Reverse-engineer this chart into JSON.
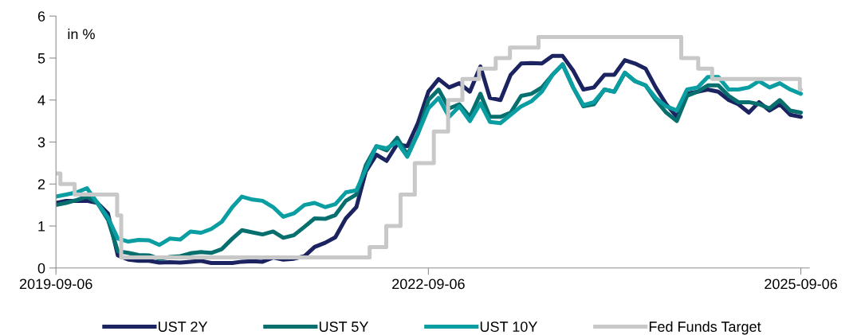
{
  "chart_data": {
    "type": "line",
    "x": [
      "2019-09-06",
      "2019-10-06",
      "2019-11-06",
      "2019-12-06",
      "2020-01-06",
      "2020-02-06",
      "2020-03-06",
      "2020-04-06",
      "2020-05-06",
      "2020-06-06",
      "2020-07-06",
      "2020-08-06",
      "2020-09-06",
      "2020-10-06",
      "2020-11-06",
      "2020-12-06",
      "2021-01-06",
      "2021-02-06",
      "2021-03-06",
      "2021-04-06",
      "2021-05-06",
      "2021-06-06",
      "2021-07-06",
      "2021-08-06",
      "2021-09-06",
      "2021-10-06",
      "2021-11-06",
      "2021-12-06",
      "2022-01-06",
      "2022-02-06",
      "2022-03-06",
      "2022-04-06",
      "2022-05-06",
      "2022-06-06",
      "2022-07-06",
      "2022-08-06",
      "2022-09-06",
      "2022-10-06",
      "2022-11-06",
      "2022-12-06",
      "2023-01-06",
      "2023-02-06",
      "2023-03-06",
      "2023-04-06",
      "2023-05-06",
      "2023-06-06",
      "2023-07-06",
      "2023-08-06",
      "2023-09-06",
      "2023-10-06",
      "2023-11-06",
      "2023-12-06",
      "2024-01-06",
      "2024-02-06",
      "2024-03-06",
      "2024-04-06",
      "2024-05-06",
      "2024-06-06",
      "2024-07-06",
      "2024-08-06",
      "2024-09-06",
      "2024-10-06",
      "2024-11-06",
      "2024-12-06",
      "2025-01-06",
      "2025-02-06",
      "2025-03-06",
      "2025-04-06",
      "2025-05-06",
      "2025-06-06",
      "2025-07-06",
      "2025-08-06",
      "2025-09-06"
    ],
    "series": [
      {
        "name": "UST 2Y",
        "color": "#1b2360",
        "values": [
          1.55,
          1.6,
          1.6,
          1.6,
          1.55,
          1.3,
          0.3,
          0.2,
          0.17,
          0.17,
          0.13,
          0.14,
          0.13,
          0.15,
          0.17,
          0.12,
          0.12,
          0.12,
          0.15,
          0.16,
          0.15,
          0.25,
          0.2,
          0.22,
          0.28,
          0.5,
          0.6,
          0.73,
          1.18,
          1.45,
          2.3,
          2.7,
          2.55,
          2.95,
          2.9,
          3.45,
          4.2,
          4.5,
          4.3,
          4.4,
          4.2,
          4.8,
          4.05,
          4.0,
          4.6,
          4.87,
          4.88,
          4.87,
          5.05,
          5.05,
          4.7,
          4.25,
          4.3,
          4.6,
          4.6,
          4.95,
          4.87,
          4.75,
          4.3,
          3.9,
          3.6,
          4.15,
          4.2,
          4.25,
          4.2,
          4.0,
          3.9,
          3.7,
          3.95,
          3.75,
          3.9,
          3.65,
          3.6
        ]
      },
      {
        "name": "UST 5Y",
        "color": "#07706f",
        "values": [
          1.5,
          1.55,
          1.62,
          1.7,
          1.55,
          1.15,
          0.4,
          0.36,
          0.31,
          0.3,
          0.22,
          0.26,
          0.28,
          0.35,
          0.38,
          0.36,
          0.45,
          0.7,
          0.9,
          0.85,
          0.8,
          0.87,
          0.72,
          0.78,
          0.98,
          1.18,
          1.17,
          1.26,
          1.6,
          1.75,
          2.45,
          2.9,
          2.8,
          3.1,
          2.7,
          3.2,
          4.0,
          4.25,
          3.8,
          3.9,
          3.6,
          4.15,
          3.6,
          3.6,
          3.7,
          4.1,
          4.15,
          4.3,
          4.6,
          4.85,
          4.3,
          3.85,
          3.9,
          4.25,
          4.2,
          4.65,
          4.45,
          4.35,
          4.0,
          3.7,
          3.5,
          4.1,
          4.2,
          4.35,
          4.35,
          4.1,
          3.95,
          3.95,
          3.9,
          3.8,
          4.0,
          3.75,
          3.7
        ]
      },
      {
        "name": "UST 10Y",
        "color": "#0a9ea2",
        "values": [
          1.7,
          1.75,
          1.8,
          1.9,
          1.55,
          1.2,
          0.7,
          0.63,
          0.67,
          0.66,
          0.55,
          0.7,
          0.68,
          0.87,
          0.84,
          0.93,
          1.1,
          1.45,
          1.7,
          1.63,
          1.6,
          1.45,
          1.22,
          1.3,
          1.5,
          1.55,
          1.45,
          1.52,
          1.8,
          1.85,
          2.35,
          2.9,
          2.85,
          3.0,
          2.65,
          3.2,
          3.8,
          4.05,
          3.6,
          3.85,
          3.5,
          3.92,
          3.48,
          3.45,
          3.65,
          3.85,
          3.97,
          4.2,
          4.6,
          4.85,
          4.3,
          3.88,
          3.95,
          4.25,
          4.2,
          4.65,
          4.45,
          4.35,
          4.05,
          3.85,
          3.75,
          4.25,
          4.3,
          4.55,
          4.55,
          4.25,
          4.25,
          4.3,
          4.45,
          4.3,
          4.4,
          4.25,
          4.15
        ]
      },
      {
        "name": "Fed Funds Target",
        "color": "#c8c8c8",
        "type": "step",
        "x": [
          "2019-09-06",
          "2019-09-19",
          "2019-10-31",
          "2020-03-04",
          "2020-03-16",
          "2022-03-17",
          "2022-05-05",
          "2022-06-16",
          "2022-07-28",
          "2022-09-22",
          "2022-11-03",
          "2022-12-15",
          "2023-02-02",
          "2023-03-23",
          "2023-05-04",
          "2023-07-27",
          "2024-09-19",
          "2024-11-08",
          "2024-12-19",
          "2025-09-03",
          "2025-09-06"
        ],
        "values": [
          2.25,
          2.0,
          1.75,
          1.25,
          0.25,
          0.5,
          1.0,
          1.75,
          2.5,
          3.25,
          4.0,
          4.5,
          4.75,
          5.0,
          5.25,
          5.5,
          5.0,
          4.75,
          4.5,
          4.25,
          4.25
        ]
      }
    ],
    "xlim": [
      "2019-09-06",
      "2025-10-01"
    ],
    "xticks": [
      "2019-09-06",
      "2022-09-06",
      "2025-09-06"
    ],
    "ylim": [
      0,
      6
    ],
    "yticks": [
      0,
      1,
      2,
      3,
      4,
      5,
      6
    ],
    "annotations": [
      "in %"
    ],
    "legend": "bottom",
    "grid": false
  }
}
